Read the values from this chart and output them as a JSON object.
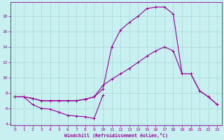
{
  "xlabel": "Windchill (Refroidissement éolien,°C)",
  "bg_color": "#c8f0f0",
  "line_color": "#990099",
  "grid_color": "#a8d8d8",
  "xlim": [
    -0.5,
    23.5
  ],
  "ylim": [
    3.8,
    19.8
  ],
  "yticks": [
    4,
    6,
    8,
    10,
    12,
    14,
    16,
    18
  ],
  "xticks": [
    0,
    1,
    2,
    3,
    4,
    5,
    6,
    7,
    8,
    9,
    10,
    11,
    12,
    13,
    14,
    15,
    16,
    17,
    18,
    19,
    20,
    21,
    22,
    23
  ],
  "series_a_x": [
    0,
    1,
    2,
    3,
    4,
    5,
    6,
    7,
    8,
    9,
    10
  ],
  "series_a_y": [
    7.5,
    7.5,
    6.5,
    6.0,
    5.9,
    5.5,
    5.1,
    5.0,
    4.9,
    4.7,
    7.7
  ],
  "series_b_x": [
    0,
    1,
    2,
    3,
    4,
    5,
    6,
    7,
    8,
    9,
    10,
    11,
    12,
    13,
    14,
    15,
    16,
    17,
    18,
    19,
    20,
    21,
    22,
    23
  ],
  "series_b_y": [
    7.5,
    7.5,
    7.3,
    7.0,
    7.0,
    7.0,
    7.0,
    7.0,
    7.2,
    7.5,
    9.0,
    9.8,
    10.5,
    11.2,
    12.0,
    12.8,
    13.5,
    14.0,
    13.5,
    10.5,
    10.5,
    8.3,
    7.5,
    6.5
  ],
  "series_c_x": [
    0,
    1,
    2,
    3,
    4,
    5,
    6,
    7,
    8,
    9,
    10,
    11,
    12,
    13,
    14,
    15,
    16,
    17,
    18,
    19,
    20,
    21,
    22,
    23
  ],
  "series_c_y": [
    7.5,
    7.5,
    7.3,
    7.0,
    7.0,
    7.0,
    7.0,
    7.0,
    7.2,
    7.5,
    8.5,
    14.0,
    16.2,
    17.2,
    18.0,
    19.0,
    19.2,
    19.2,
    18.3,
    10.5,
    10.5,
    8.3,
    7.5,
    6.5
  ]
}
